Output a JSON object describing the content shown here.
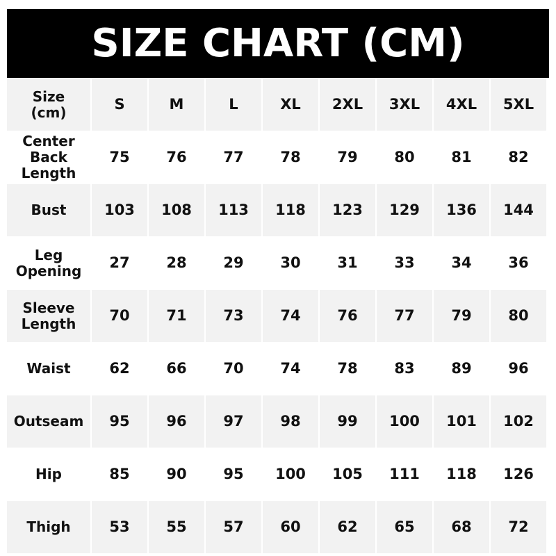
{
  "title": "SIZE CHART (CM)",
  "header": {
    "label_line1": "Size",
    "label_line2": "(cm)",
    "sizes": [
      "S",
      "M",
      "L",
      "XL",
      "2XL",
      "3XL",
      "4XL",
      "5XL"
    ]
  },
  "rows": [
    {
      "label": "Center Back Length",
      "values": [
        "75",
        "76",
        "77",
        "78",
        "79",
        "80",
        "81",
        "82"
      ]
    },
    {
      "label": "Bust",
      "values": [
        "103",
        "108",
        "113",
        "118",
        "123",
        "129",
        "136",
        "144"
      ]
    },
    {
      "label": "Leg Opening",
      "values": [
        "27",
        "28",
        "29",
        "30",
        "31",
        "33",
        "34",
        "36"
      ]
    },
    {
      "label": "Sleeve Length",
      "values": [
        "70",
        "71",
        "73",
        "74",
        "76",
        "77",
        "79",
        "80"
      ]
    },
    {
      "label": "Waist",
      "values": [
        "62",
        "66",
        "70",
        "74",
        "78",
        "83",
        "89",
        "96"
      ]
    },
    {
      "label": "Outseam",
      "values": [
        "95",
        "96",
        "97",
        "98",
        "99",
        "100",
        "101",
        "102"
      ]
    },
    {
      "label": "Hip",
      "values": [
        "85",
        "90",
        "95",
        "100",
        "105",
        "111",
        "118",
        "126"
      ]
    },
    {
      "label": "Thigh",
      "values": [
        "53",
        "55",
        "57",
        "60",
        "62",
        "65",
        "68",
        "72"
      ]
    }
  ]
}
